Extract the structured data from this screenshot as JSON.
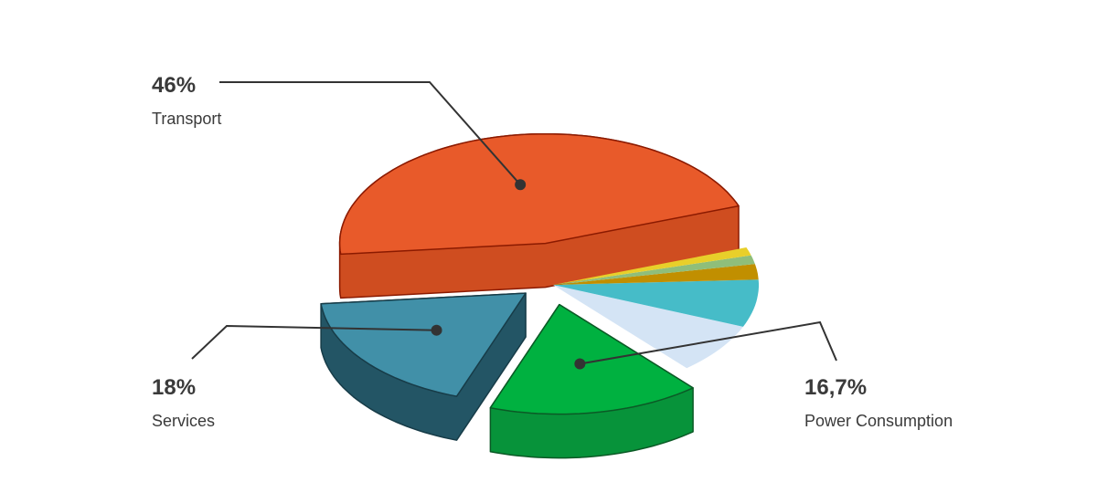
{
  "chart_data": {
    "type": "pie",
    "style": "3d-exploded",
    "slices": [
      {
        "label": "Transport",
        "value": 46,
        "value_label": "46%",
        "top": "#e85a2a",
        "side": "#cf4d20",
        "stroke": "#8b1a00",
        "explode": true
      },
      {
        "label": "Services",
        "value": 18,
        "value_label": "18%",
        "top": "#4190a8",
        "side": "#235565",
        "stroke": "#173c48",
        "explode": true
      },
      {
        "label": "Power Consumption",
        "value": 16.7,
        "value_label": "16,7%",
        "top": "#00b140",
        "side": "#07933a",
        "stroke": "#0b5a26",
        "explode": true
      },
      {
        "label": "",
        "value": 7.5,
        "value_label": "",
        "top": "#d4e4f5",
        "explode": false
      },
      {
        "label": "",
        "value": 7,
        "value_label": "",
        "top": "#46bcc8",
        "explode": false
      },
      {
        "label": "",
        "value": 2.3,
        "value_label": "",
        "top": "#c18f00",
        "explode": false
      },
      {
        "label": "",
        "value": 1.3,
        "value_label": "",
        "top": "#8fbe7a",
        "explode": false
      },
      {
        "label": "",
        "value": 1.2,
        "value_label": "",
        "top": "#e8cf2a",
        "explode": false
      }
    ],
    "legend": "none"
  }
}
